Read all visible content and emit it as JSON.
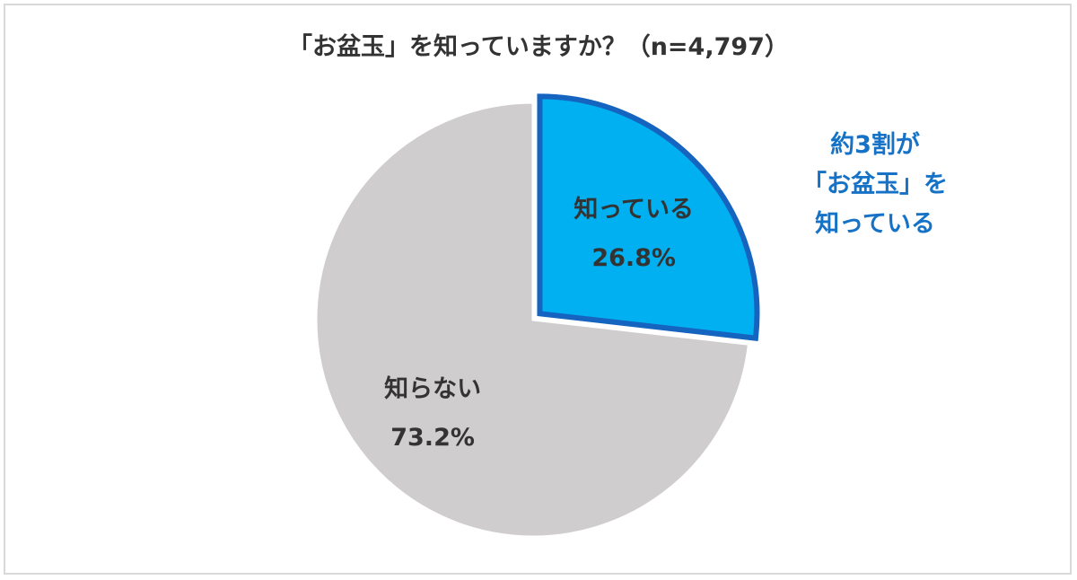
{
  "chart_data": {
    "type": "pie",
    "title": "「お盆玉」を知っていますか？（n=4,797）",
    "slices": [
      {
        "label": "知っている",
        "value": 26.8,
        "value_label": "26.8%",
        "color": "#00b0f0",
        "stroke": "#1565c0",
        "exploded": true
      },
      {
        "label": "知らない",
        "value": 73.2,
        "value_label": "73.2%",
        "color": "#d0cdce",
        "stroke": "#ffffff",
        "exploded": false
      }
    ],
    "start_angle_deg": 0,
    "direction": "clockwise",
    "legend": "none"
  },
  "annotation": {
    "lines": [
      "約3割が",
      "「お盆玉」を",
      "知っている"
    ],
    "color": "#1572c6"
  }
}
